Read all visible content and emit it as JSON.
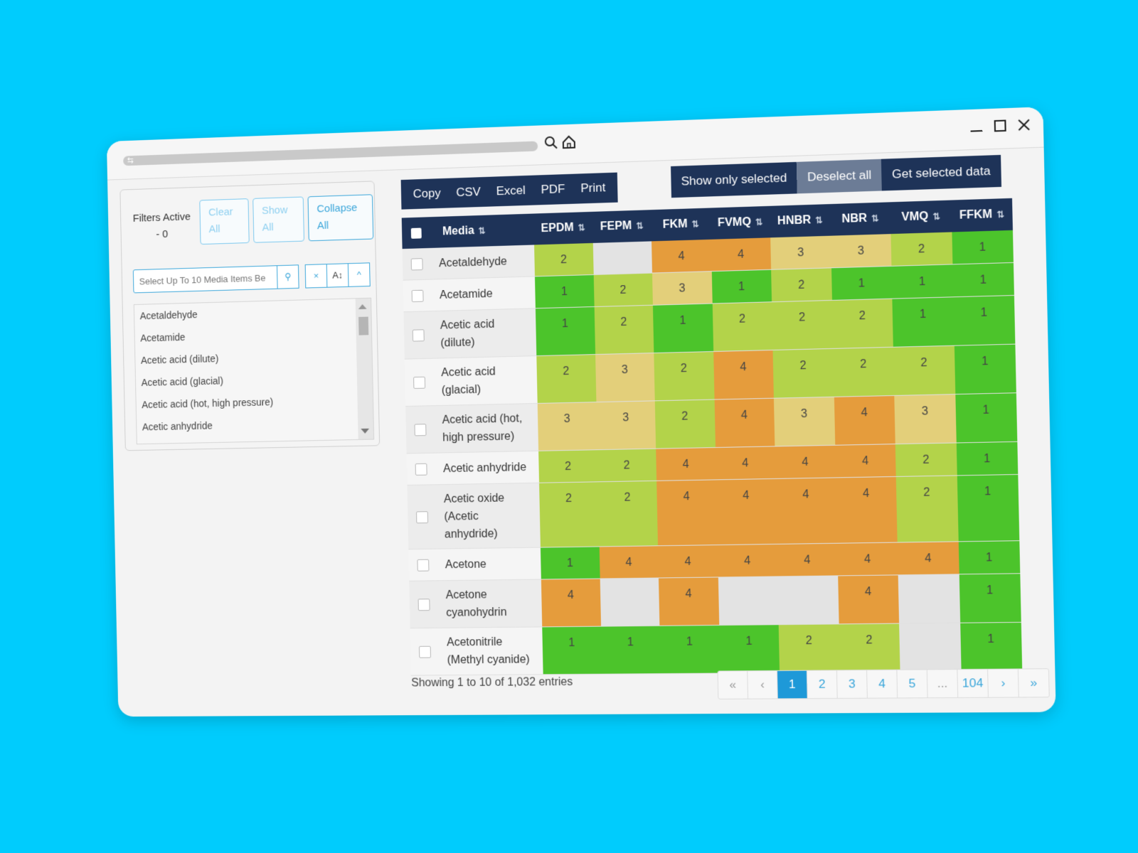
{
  "filters": {
    "label_line1": "Filters Active",
    "label_line2": "- 0",
    "clear_line1": "Clear",
    "clear_line2": "All",
    "show_line1": "Show",
    "show_line2": "All",
    "collapse_line1": "Collapse",
    "collapse_line2": "All",
    "search_placeholder": "Select Up To 10 Media Items Be",
    "list": [
      "Acetaldehyde",
      "Acetamide",
      "Acetic acid (dilute)",
      "Acetic acid (glacial)",
      "Acetic acid (hot, high pressure)",
      "Acetic anhydride"
    ]
  },
  "export": [
    "Copy",
    "CSV",
    "Excel",
    "PDF",
    "Print"
  ],
  "actions": [
    "Show only selected",
    "Deselect all",
    "Get selected data"
  ],
  "table": {
    "media_header": "Media",
    "columns": [
      "EPDM",
      "FEPM",
      "FKM",
      "FVMQ",
      "HNBR",
      "NBR",
      "VMQ",
      "FFKM"
    ],
    "rows": [
      {
        "media": "Acetaldehyde",
        "values": [
          "2",
          "",
          "4",
          "4",
          "3",
          "3",
          "2",
          "1"
        ]
      },
      {
        "media": "Acetamide",
        "values": [
          "1",
          "2",
          "3",
          "1",
          "2",
          "1",
          "1",
          "1"
        ]
      },
      {
        "media": "Acetic acid (dilute)",
        "values": [
          "1",
          "2",
          "1",
          "2",
          "2",
          "2",
          "1",
          "1"
        ]
      },
      {
        "media": "Acetic acid (glacial)",
        "values": [
          "2",
          "3",
          "2",
          "4",
          "2",
          "2",
          "2",
          "1"
        ]
      },
      {
        "media": "Acetic acid (hot, high pressure)",
        "values": [
          "3",
          "3",
          "2",
          "4",
          "3",
          "4",
          "3",
          "1"
        ]
      },
      {
        "media": "Acetic anhydride",
        "values": [
          "2",
          "2",
          "4",
          "4",
          "4",
          "4",
          "2",
          "1"
        ]
      },
      {
        "media": "Acetic oxide (Acetic anhydride)",
        "values": [
          "2",
          "2",
          "4",
          "4",
          "4",
          "4",
          "2",
          "1"
        ]
      },
      {
        "media": "Acetone",
        "values": [
          "1",
          "4",
          "4",
          "4",
          "4",
          "4",
          "4",
          "1"
        ]
      },
      {
        "media": "Acetone cyanohydrin",
        "values": [
          "4",
          "",
          "4",
          "",
          "",
          "4",
          "",
          "1"
        ]
      },
      {
        "media": "Acetonitrile (Methyl cyanide)",
        "values": [
          "1",
          "1",
          "1",
          "1",
          "2",
          "2",
          "",
          "1"
        ]
      }
    ]
  },
  "info": "Showing 1 to 10 of 1,032 entries",
  "pagination": [
    "«",
    "‹",
    "1",
    "2",
    "3",
    "4",
    "5",
    "...",
    "104",
    "›",
    "»"
  ],
  "pagination_active": "1",
  "colors": {
    "v1": "#4cc42b",
    "v2": "#b3d34a",
    "v3": "#e3cf7a",
    "v4": "#e59c3c",
    "empty": "#e3e3e3",
    "header": "#1e3358",
    "accent": "#3aa6da"
  }
}
